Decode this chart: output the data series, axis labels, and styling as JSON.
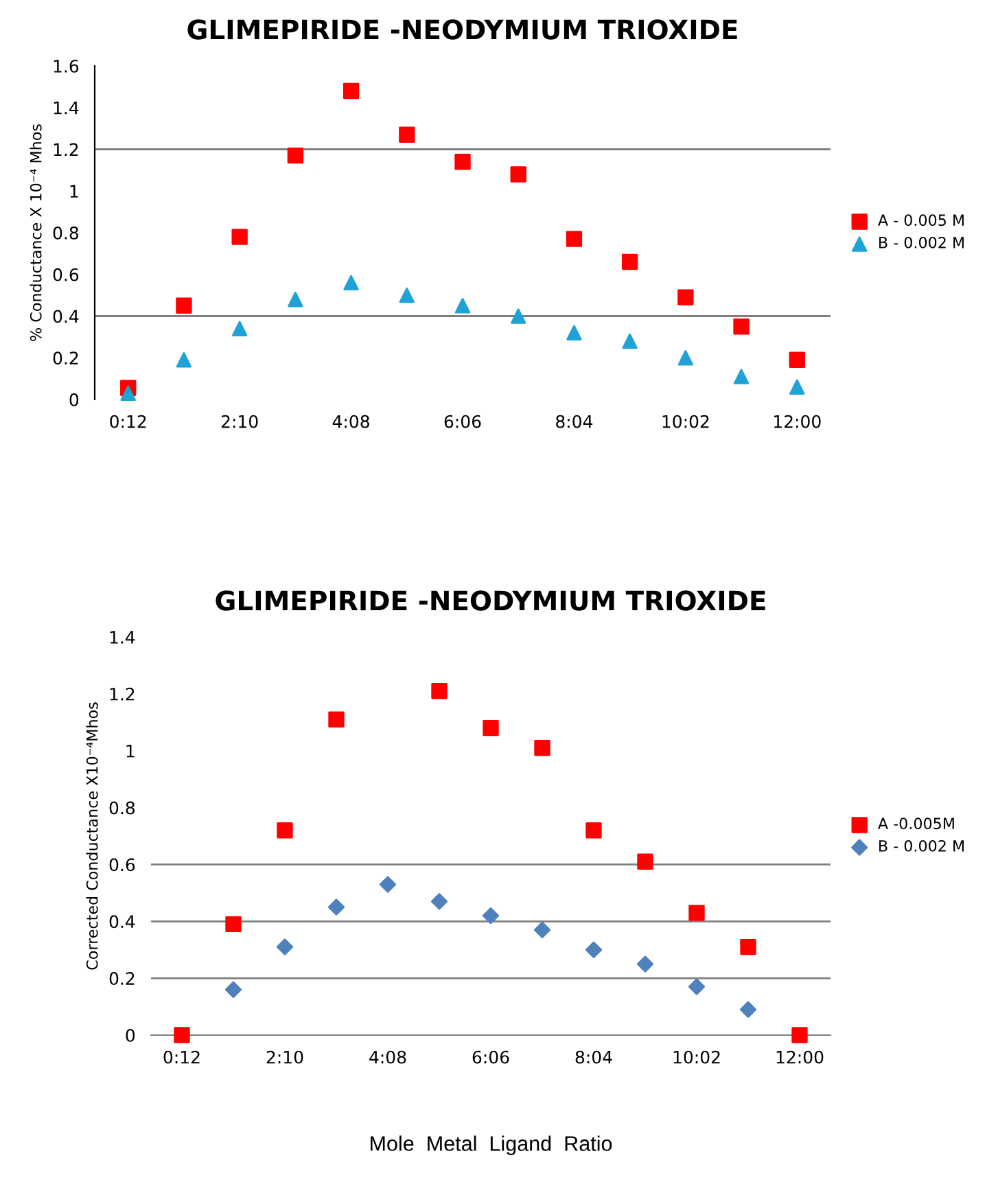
{
  "chart_data": [
    {
      "type": "scatter",
      "title": "GLIMEPIRIDE -NEODYMIUM TRIOXIDE",
      "ylabel": "% Conductance X 10⁻⁴ Mhos",
      "categories": [
        "0:12",
        null,
        "2:10",
        null,
        "4:08",
        null,
        "6:06",
        null,
        "8:04",
        null,
        "10:02",
        null,
        "12:00"
      ],
      "series": [
        {
          "name": "A - 0.005 M",
          "color": "#ff0000",
          "marker": "square",
          "values": [
            0.055,
            0.45,
            0.78,
            1.17,
            1.48,
            1.27,
            1.14,
            1.08,
            0.77,
            0.66,
            0.49,
            0.35,
            0.19
          ]
        },
        {
          "name": "B - 0.002 M",
          "color": "#1fa2d6",
          "marker": "triangle",
          "values": [
            0.03,
            0.19,
            0.34,
            0.48,
            0.56,
            0.5,
            0.45,
            0.4,
            0.32,
            0.28,
            0.2,
            0.11,
            0.06
          ]
        }
      ],
      "ylim": [
        0,
        1.6
      ],
      "yticks": [
        0,
        0.2,
        0.4,
        0.6,
        0.8,
        1,
        1.2,
        1.4,
        1.6
      ],
      "ref_lines": [
        {
          "axis": "y",
          "value": 0.4,
          "color": "#808080"
        },
        {
          "axis": "y",
          "value": 1.2,
          "color": "#808080"
        }
      ],
      "legend": "right"
    },
    {
      "type": "scatter",
      "title": "GLIMEPIRIDE -NEODYMIUM TRIOXIDE",
      "ylabel": "Corrected Conductance X10⁻⁴Mhos",
      "xlabel": "Mole  Metal  Ligand  Ratio",
      "categories": [
        "0:12",
        null,
        "2:10",
        null,
        "4:08",
        null,
        "6:06",
        null,
        "8:04",
        null,
        "10:02",
        null,
        "12:00"
      ],
      "series": [
        {
          "name": "A -0.005M",
          "color": "#ff0000",
          "marker": "square",
          "values": [
            0,
            0.39,
            0.72,
            1.11,
            null,
            1.21,
            1.08,
            1.01,
            0.72,
            0.61,
            0.43,
            0.31,
            0
          ]
        },
        {
          "name": "B - 0.002 M",
          "color": "#4f81bd",
          "marker": "diamond",
          "values": [
            null,
            0.16,
            0.31,
            0.45,
            0.53,
            0.47,
            0.42,
            0.37,
            0.3,
            0.25,
            0.17,
            0.09,
            null
          ]
        }
      ],
      "ylim": [
        0,
        1.4
      ],
      "yticks": [
        0,
        0.2,
        0.4,
        0.6,
        0.8,
        1,
        1.2,
        1.4
      ],
      "ref_lines": [
        {
          "axis": "y",
          "value": 0.2,
          "color": "#808080"
        },
        {
          "axis": "y",
          "value": 0.4,
          "color": "#808080"
        },
        {
          "axis": "y",
          "value": 0.6,
          "color": "#808080"
        }
      ],
      "legend": "right"
    }
  ]
}
